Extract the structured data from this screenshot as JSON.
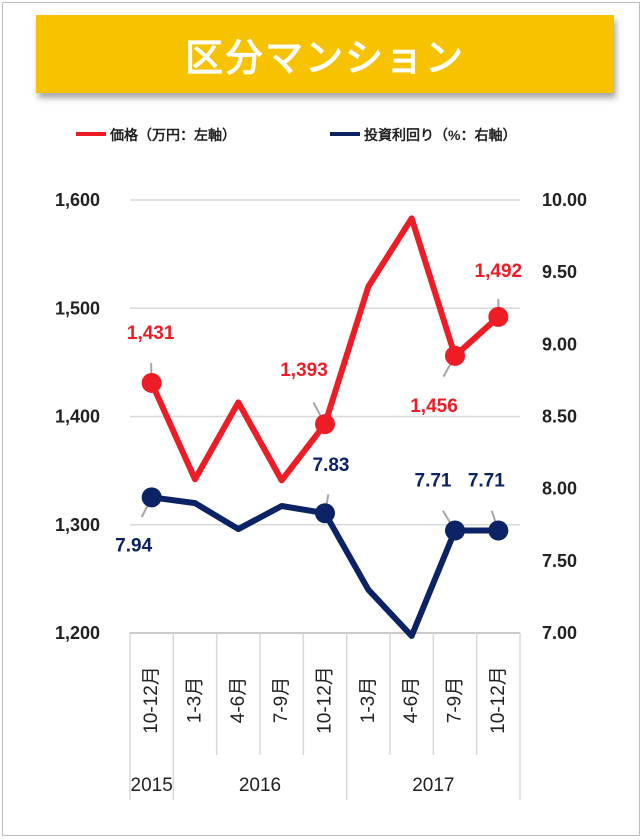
{
  "banner": {
    "title": "区分マンション"
  },
  "colors": {
    "banner": "#f7c200",
    "price": "#ee1c25",
    "yield": "#0b2265",
    "grid": "#d9d9d9"
  },
  "chart_data": {
    "type": "line",
    "legend": [
      {
        "name": "価格（万円：左軸）",
        "color": "#ee1c25"
      },
      {
        "name": "投資利回り（%：右軸）",
        "color": "#0b2265"
      }
    ],
    "categories": [
      "10-12月",
      "1-3月",
      "4-6月",
      "7-9月",
      "10-12月",
      "1-3月",
      "4-6月",
      "7-9月",
      "10-12月"
    ],
    "years": [
      {
        "label": "2015",
        "from": 0,
        "to": 0
      },
      {
        "label": "2016",
        "from": 1,
        "to": 4
      },
      {
        "label": "2017",
        "from": 5,
        "to": 8
      }
    ],
    "left_axis": {
      "ticks": [
        "1,200",
        "1,300",
        "1,400",
        "1,500",
        "1,600"
      ],
      "min": 1200,
      "max": 1600
    },
    "right_axis": {
      "ticks": [
        "7.00",
        "7.50",
        "8.00",
        "8.50",
        "9.00",
        "9.50",
        "10.00"
      ],
      "min": 7.0,
      "max": 10.0
    },
    "grid": true,
    "series": [
      {
        "name": "価格（万円：左軸）",
        "axis": "left",
        "values": [
          1431,
          1342,
          1413,
          1341,
          1393,
          1520,
          1583,
          1456,
          1492
        ],
        "labels": [
          "1,431",
          "",
          "",
          "",
          "1,393",
          "",
          "",
          "1,456",
          "1,492"
        ],
        "markers": [
          0,
          4,
          7,
          8
        ]
      },
      {
        "name": "投資利回り（%：右軸）",
        "axis": "right",
        "values": [
          7.94,
          7.9,
          7.72,
          7.88,
          7.83,
          7.3,
          6.98,
          7.71,
          7.71
        ],
        "labels": [
          "7.94",
          "",
          "",
          "",
          "7.83",
          "",
          "",
          "7.71",
          "7.71"
        ],
        "markers": [
          0,
          4,
          7,
          8
        ]
      }
    ]
  }
}
